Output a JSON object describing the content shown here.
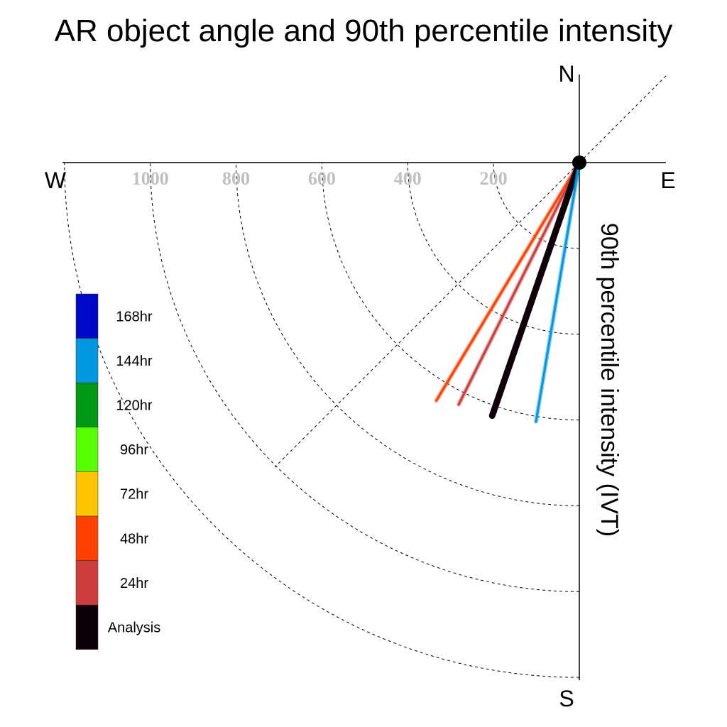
{
  "chart_data": {
    "type": "polar-quadrant",
    "title": "AR object angle and 90th percentile intensity",
    "radial_label": "90th percentile intensity (IVT)",
    "compass": {
      "north": "N",
      "south": "S",
      "west": "W",
      "east": "E"
    },
    "radial_ticks": [
      200,
      400,
      600,
      800,
      1000
    ],
    "rmax": 1200,
    "series": [
      {
        "name": "48hr",
        "angle_deg_from_south": 31.0,
        "intensity": 647,
        "color": "#ff4000"
      },
      {
        "name": "24hr",
        "angle_deg_from_south": 26.5,
        "intensity": 630,
        "color": "#cc3e3e"
      },
      {
        "name": "Analysis",
        "angle_deg_from_south": 19.0,
        "intensity": 624,
        "color": "#0d0008"
      },
      {
        "name": "144hr",
        "angle_deg_from_south": 9.5,
        "intensity": 612,
        "color": "#0098e0"
      }
    ],
    "legend": [
      {
        "label": "168hr",
        "color": "#0008c8"
      },
      {
        "label": "144hr",
        "color": "#0098e0"
      },
      {
        "label": "120hr",
        "color": "#009814"
      },
      {
        "label": "96hr",
        "color": "#58ff00"
      },
      {
        "label": "72hr",
        "color": "#ffc400"
      },
      {
        "label": "48hr",
        "color": "#ff4000"
      },
      {
        "label": "24hr",
        "color": "#cc3e3e"
      },
      {
        "label": "Analysis",
        "color": "#0d0008"
      }
    ]
  }
}
